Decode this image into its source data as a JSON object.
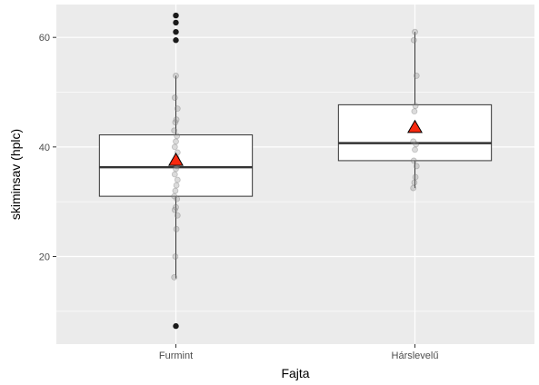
{
  "chart_data": {
    "type": "boxplot",
    "xlabel": "Fajta",
    "ylabel": "skiminsav (hplc)",
    "ylim": [
      4,
      66
    ],
    "yticks": [
      20,
      40,
      60
    ],
    "y_minor_ticks": [
      10,
      30,
      50
    ],
    "grid": true,
    "background": "#ebebeb",
    "categories": [
      "Furmint",
      "Hárslevelű"
    ],
    "boxes": [
      {
        "category": "Furmint",
        "whisker_low": 16,
        "q1": 31,
        "median": 36.3,
        "q3": 42.2,
        "whisker_high": 53,
        "mean": 37.5,
        "outliers": [
          7.3,
          59.5,
          61,
          62.7,
          64
        ],
        "points": [
          16.2,
          20,
          25,
          27.5,
          28.5,
          29,
          30.5,
          31,
          32,
          33,
          34,
          35,
          36,
          36.5,
          37,
          37.5,
          38,
          39,
          40,
          41,
          42,
          43,
          44.5,
          45,
          47,
          49,
          53
        ]
      },
      {
        "category": "Hárslevelű",
        "whisker_low": 32.5,
        "q1": 37.5,
        "median": 40.7,
        "q3": 47.7,
        "whisker_high": 61,
        "mean": 43.5,
        "outliers": [],
        "points": [
          32.5,
          33.5,
          34.5,
          36.5,
          37.5,
          39.5,
          40.5,
          41,
          46.5,
          47.5,
          53,
          59.5,
          61
        ]
      }
    ],
    "colors": {
      "panel": "#ebebeb",
      "grid": "#ffffff",
      "box_fill": "#ffffff",
      "box_stroke": "#333333",
      "median": "#333333",
      "outlier": "#1a1a1a",
      "jitter_point": "#999999",
      "mean_marker": "#f8290f"
    }
  }
}
